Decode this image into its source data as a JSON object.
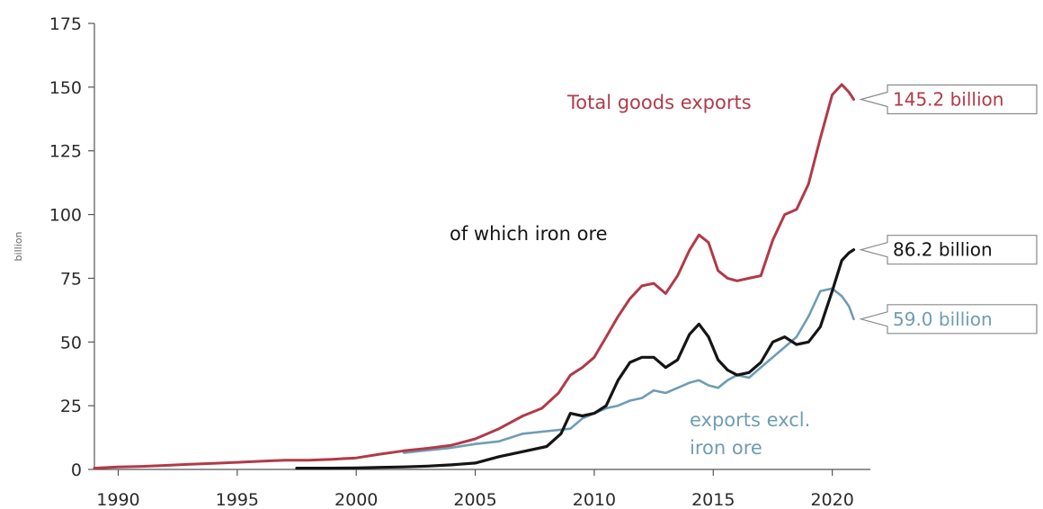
{
  "chart_data": {
    "type": "line",
    "title": "",
    "xlabel": "",
    "ylabel": "billion",
    "xlim": [
      1989,
      2021.6
    ],
    "ylim": [
      0,
      175
    ],
    "x_ticks": [
      "1990",
      "1995",
      "2000",
      "2005",
      "2010",
      "2015",
      "2020"
    ],
    "y_ticks": [
      "0",
      "25",
      "50",
      "75",
      "100",
      "125",
      "150",
      "175"
    ],
    "grid": false,
    "series": [
      {
        "name": "Total goods exports",
        "color": "#b23a48",
        "end_label": "145.2 billion",
        "points": [
          [
            1989,
            0.5
          ],
          [
            1990,
            1
          ],
          [
            1991,
            1.2
          ],
          [
            1992,
            1.6
          ],
          [
            1993,
            2
          ],
          [
            1994,
            2.4
          ],
          [
            1995,
            2.8
          ],
          [
            1996,
            3.2
          ],
          [
            1997,
            3.6
          ],
          [
            1998,
            3.6
          ],
          [
            1999,
            4
          ],
          [
            2000,
            4.5
          ],
          [
            2001,
            6
          ],
          [
            2002,
            7.3
          ],
          [
            2003,
            8.3
          ],
          [
            2004,
            9.5
          ],
          [
            2005,
            12
          ],
          [
            2006,
            16
          ],
          [
            2007,
            21
          ],
          [
            2007.8,
            24
          ],
          [
            2008.5,
            30
          ],
          [
            2009,
            37
          ],
          [
            2009.5,
            40
          ],
          [
            2010,
            44
          ],
          [
            2010.5,
            52
          ],
          [
            2011,
            60
          ],
          [
            2011.5,
            67
          ],
          [
            2012,
            72
          ],
          [
            2012.5,
            73
          ],
          [
            2013,
            69
          ],
          [
            2013.5,
            76
          ],
          [
            2014,
            86
          ],
          [
            2014.4,
            92
          ],
          [
            2014.8,
            89
          ],
          [
            2015.2,
            78
          ],
          [
            2015.6,
            75
          ],
          [
            2016,
            74
          ],
          [
            2016.5,
            75
          ],
          [
            2017,
            76
          ],
          [
            2017.5,
            90
          ],
          [
            2018,
            100
          ],
          [
            2018.5,
            102
          ],
          [
            2019,
            112
          ],
          [
            2019.5,
            130
          ],
          [
            2020,
            147
          ],
          [
            2020.4,
            151
          ],
          [
            2020.7,
            148
          ],
          [
            2020.9,
            145.2
          ]
        ]
      },
      {
        "name": "of which iron ore",
        "color": "#151515",
        "end_label": "86.2 billion",
        "points": [
          [
            1997.5,
            0.5
          ],
          [
            1999,
            0.5
          ],
          [
            2000,
            0.6
          ],
          [
            2001,
            0.8
          ],
          [
            2002,
            1
          ],
          [
            2003,
            1.3
          ],
          [
            2004,
            1.8
          ],
          [
            2005,
            2.5
          ],
          [
            2006,
            5
          ],
          [
            2007,
            7
          ],
          [
            2008,
            9
          ],
          [
            2008.6,
            14
          ],
          [
            2009,
            22
          ],
          [
            2009.5,
            21
          ],
          [
            2010,
            22
          ],
          [
            2010.5,
            25
          ],
          [
            2011,
            35
          ],
          [
            2011.5,
            42
          ],
          [
            2012,
            44
          ],
          [
            2012.5,
            44
          ],
          [
            2013,
            40
          ],
          [
            2013.5,
            43
          ],
          [
            2014,
            53
          ],
          [
            2014.4,
            57
          ],
          [
            2014.8,
            52
          ],
          [
            2015.2,
            43
          ],
          [
            2015.6,
            39
          ],
          [
            2016,
            37
          ],
          [
            2016.5,
            38
          ],
          [
            2017,
            42
          ],
          [
            2017.5,
            50
          ],
          [
            2018,
            52
          ],
          [
            2018.5,
            49
          ],
          [
            2019,
            50
          ],
          [
            2019.5,
            56
          ],
          [
            2020,
            70
          ],
          [
            2020.4,
            82
          ],
          [
            2020.7,
            85
          ],
          [
            2020.9,
            86.2
          ]
        ]
      },
      {
        "name": "exports excl. iron ore",
        "color": "#6f9db4",
        "end_label": "59.0 billion",
        "points": [
          [
            2002,
            6.5
          ],
          [
            2003,
            7.5
          ],
          [
            2004,
            8.5
          ],
          [
            2005,
            10
          ],
          [
            2006,
            11
          ],
          [
            2007,
            14
          ],
          [
            2008,
            15
          ],
          [
            2009,
            16
          ],
          [
            2009.5,
            20
          ],
          [
            2010,
            22
          ],
          [
            2010.5,
            24
          ],
          [
            2011,
            25
          ],
          [
            2011.5,
            27
          ],
          [
            2012,
            28
          ],
          [
            2012.5,
            31
          ],
          [
            2013,
            30
          ],
          [
            2013.5,
            32
          ],
          [
            2014,
            34
          ],
          [
            2014.4,
            35
          ],
          [
            2014.8,
            33
          ],
          [
            2015.2,
            32
          ],
          [
            2015.6,
            35
          ],
          [
            2016,
            37
          ],
          [
            2016.5,
            36
          ],
          [
            2017,
            40
          ],
          [
            2017.5,
            44
          ],
          [
            2018,
            48
          ],
          [
            2018.5,
            52
          ],
          [
            2019,
            60
          ],
          [
            2019.5,
            70
          ],
          [
            2020,
            71
          ],
          [
            2020.4,
            68
          ],
          [
            2020.7,
            64
          ],
          [
            2020.9,
            59
          ]
        ]
      }
    ]
  }
}
